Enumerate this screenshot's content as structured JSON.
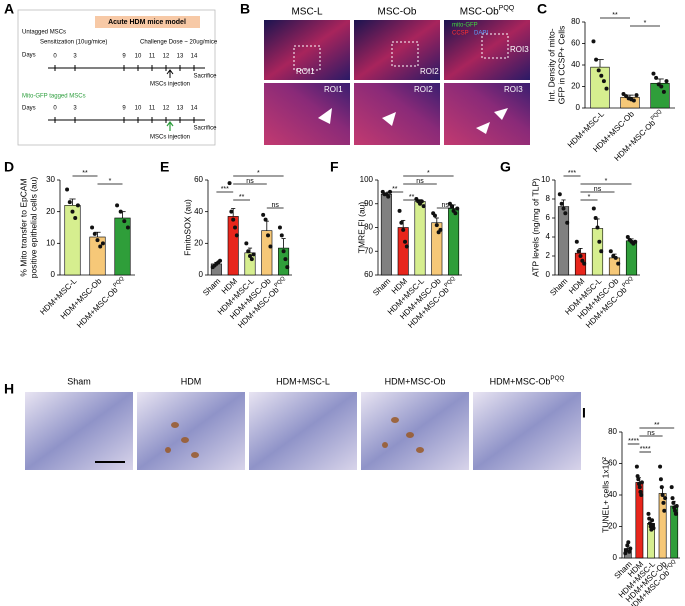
{
  "panel_a": {
    "label": "A",
    "title": "Acute HDM mice model",
    "group1": "Untagged MSCs",
    "sensitization": "Sensitization (10ug/mice)",
    "challenge": "Challenge Dose ~ 20ug/mice",
    "days_label": "Days",
    "days": [
      "0",
      "3",
      "9",
      "10",
      "11",
      "12",
      "13",
      "14"
    ],
    "injection": "MSCs injection",
    "sacrifice": "Sacrifice",
    "group2": "Mito-GFP tagged MSCs"
  },
  "panel_b": {
    "label": "B",
    "columns": [
      "MSC-L",
      "MSC-Ob",
      "MSC-ObPQQ"
    ],
    "legend": [
      "mito-GFP",
      "CCSP",
      "DAPI"
    ],
    "rois": [
      "ROI1",
      "ROI2",
      "ROI3"
    ]
  },
  "panel_h": {
    "label": "H",
    "columns": [
      "Sham",
      "HDM",
      "HDM+MSC-L",
      "HDM+MSC-Ob",
      "HDM+MSC-ObPQQ"
    ]
  },
  "chart_data": [
    {
      "label": "C",
      "type": "bar",
      "ylabel": [
        "Int. Density of mito-",
        "GFP in CCSP+ Cells"
      ],
      "categories": [
        "HDM+MSC-L",
        "HDM+MSC-Ob",
        "HDM+MSC-ObPQQ"
      ],
      "colors": [
        "#d6ee8f",
        "#f6c878",
        "#2f9e3a"
      ],
      "values": [
        38,
        10,
        23
      ],
      "errors": [
        7,
        2,
        4
      ],
      "points": [
        [
          62,
          45,
          35,
          30,
          25,
          18
        ],
        [
          13,
          11,
          9,
          8,
          7,
          12
        ],
        [
          32,
          28,
          22,
          20,
          15,
          25
        ]
      ],
      "ylim": [
        0,
        80
      ],
      "yticks": [
        0,
        20,
        40,
        60,
        80
      ],
      "annotations": [
        {
          "between": [
            0,
            1
          ],
          "text": "**"
        },
        {
          "between": [
            1,
            2
          ],
          "text": "*"
        }
      ]
    },
    {
      "label": "D",
      "type": "bar",
      "ylabel": [
        "% Mito transfer to EpCAM",
        "positive epithelial cells (au)"
      ],
      "categories": [
        "HDM+MSC-L",
        "HDM+MSC-Ob",
        "HDM+MSC-ObPQQ"
      ],
      "colors": [
        "#d6ee8f",
        "#f6c878",
        "#2f9e3a"
      ],
      "values": [
        22,
        12,
        18
      ],
      "errors": [
        2,
        1.5,
        2
      ],
      "points": [
        [
          27,
          23,
          20,
          18,
          22
        ],
        [
          15,
          13,
          11,
          9,
          10
        ],
        [
          22,
          20,
          17,
          15
        ]
      ],
      "ylim": [
        0,
        30
      ],
      "yticks": [
        0,
        10,
        20,
        30
      ],
      "annotations": [
        {
          "between": [
            0,
            1
          ],
          "text": "**"
        },
        {
          "between": [
            1,
            2
          ],
          "text": "*"
        }
      ]
    },
    {
      "label": "E",
      "type": "bar",
      "ylabel": [
        "FmitoSOX (au)"
      ],
      "categories": [
        "Sham",
        "HDM",
        "HDM+MSC-L",
        "HDM+MSC-Ob",
        "HDM+MSC-ObPQQ"
      ],
      "colors": [
        "#808080",
        "#e8261c",
        "#d6ee8f",
        "#f6c878",
        "#2f9e3a"
      ],
      "values": [
        7,
        37,
        14,
        28,
        17
      ],
      "errors": [
        1,
        5,
        3,
        6,
        6
      ],
      "points": [
        [
          5,
          6,
          7,
          8,
          9
        ],
        [
          58,
          40,
          35,
          30,
          25
        ],
        [
          20,
          15,
          12,
          10,
          13
        ],
        [
          38,
          35,
          25,
          18
        ],
        [
          30,
          25,
          15,
          10,
          5
        ]
      ],
      "ylim": [
        0,
        60
      ],
      "yticks": [
        0,
        20,
        40,
        60
      ],
      "annotations": [
        {
          "between": [
            1,
            4
          ],
          "text": "*"
        },
        {
          "between": [
            1,
            3
          ],
          "text": "ns"
        },
        {
          "between": [
            0,
            1
          ],
          "text": "***"
        },
        {
          "between": [
            1,
            2
          ],
          "text": "**"
        },
        {
          "between": [
            3,
            4
          ],
          "text": "ns"
        }
      ]
    },
    {
      "label": "F",
      "type": "bar",
      "ylabel": [
        "TMRE FI (au)"
      ],
      "categories": [
        "Sham",
        "HDM",
        "HDM+MSC-L",
        "HDM+MSC-Ob",
        "HDM+MSC-ObPQQ"
      ],
      "colors": [
        "#808080",
        "#e8261c",
        "#d6ee8f",
        "#f6c878",
        "#2f9e3a"
      ],
      "values": [
        94,
        80,
        91,
        82,
        88
      ],
      "errors": [
        0.5,
        3,
        0.7,
        2,
        1.5
      ],
      "points": [
        [
          95,
          94,
          94,
          93,
          95
        ],
        [
          87,
          82,
          79,
          74,
          72
        ],
        [
          92,
          91,
          90,
          91,
          89
        ],
        [
          86,
          85,
          81,
          78,
          79
        ],
        [
          90,
          89,
          87,
          86,
          88
        ]
      ],
      "ylim": [
        60,
        100
      ],
      "yticks": [
        60,
        70,
        80,
        90,
        100
      ],
      "annotations": [
        {
          "between": [
            1,
            4
          ],
          "text": "*"
        },
        {
          "between": [
            1,
            3
          ],
          "text": "ns"
        },
        {
          "between": [
            0,
            1
          ],
          "text": "**"
        },
        {
          "between": [
            1,
            2
          ],
          "text": "**"
        },
        {
          "between": [
            3,
            4
          ],
          "text": "ns"
        }
      ]
    },
    {
      "label": "G",
      "type": "bar",
      "ylabel": [
        "ATP levels (ng/mg of TLP)"
      ],
      "categories": [
        "Sham",
        "HDM",
        "HDM+MSC-L",
        "HDM+MSC-Ob",
        "HDM+MSC-ObPQQ"
      ],
      "colors": [
        "#808080",
        "#e8261c",
        "#d6ee8f",
        "#f6c878",
        "#2f9e3a"
      ],
      "values": [
        7.2,
        2.3,
        4.9,
        1.8,
        3.6
      ],
      "errors": [
        0.7,
        0.5,
        1,
        0.4,
        0.2
      ],
      "points": [
        [
          8.5,
          7.5,
          7,
          6.5,
          5.5
        ],
        [
          3.5,
          2.5,
          2,
          1.5,
          1.2
        ],
        [
          7,
          6,
          5,
          3.5,
          2.5
        ],
        [
          2.5,
          2,
          1.8,
          1.2
        ],
        [
          4,
          3.7,
          3.5,
          3.3,
          3.5
        ]
      ],
      "ylim": [
        0,
        10
      ],
      "yticks": [
        0,
        2,
        4,
        6,
        8,
        10
      ],
      "annotations": [
        {
          "between": [
            0,
            1
          ],
          "text": "***"
        },
        {
          "between": [
            1,
            4
          ],
          "text": "*"
        },
        {
          "between": [
            1,
            3
          ],
          "text": "ns"
        },
        {
          "between": [
            1,
            2
          ],
          "text": "*"
        }
      ]
    },
    {
      "label": "I",
      "type": "bar",
      "ylabel": [
        "TUNEL+ cells 1x10²"
      ],
      "categories": [
        "Sham",
        "HDM",
        "HDM+MSC-L",
        "HDM+MSC-Ob",
        "HDM+MSC-ObPQQ"
      ],
      "colors": [
        "#808080",
        "#e8261c",
        "#d6ee8f",
        "#f6c878",
        "#2f9e3a"
      ],
      "values": [
        6,
        48,
        22,
        41,
        33
      ],
      "errors": [
        2,
        3,
        2,
        4,
        3
      ],
      "points": [
        [
          3,
          5,
          8,
          10,
          4,
          6
        ],
        [
          58,
          52,
          50,
          47,
          45,
          42,
          40,
          48
        ],
        [
          28,
          25,
          22,
          20,
          18,
          24,
          21,
          19
        ],
        [
          58,
          50,
          45,
          40,
          35,
          30,
          38
        ],
        [
          45,
          38,
          35,
          32,
          30,
          28,
          33
        ]
      ],
      "ylim": [
        0,
        80
      ],
      "yticks": [
        0,
        20,
        40,
        60,
        80
      ],
      "annotations": [
        {
          "between": [
            1,
            4
          ],
          "text": "**"
        },
        {
          "between": [
            1,
            3
          ],
          "text": "ns"
        },
        {
          "between": [
            0,
            1
          ],
          "text": "****"
        },
        {
          "between": [
            1,
            2
          ],
          "text": "****"
        }
      ]
    }
  ]
}
